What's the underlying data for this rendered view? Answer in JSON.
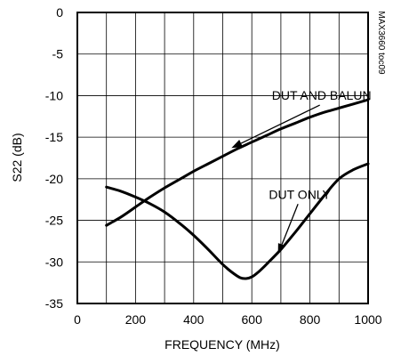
{
  "chart_data": {
    "type": "line",
    "title": "",
    "xlabel": "FREQUENCY (MHz)",
    "ylabel": "S22 (dB)",
    "xlim": [
      0,
      1000
    ],
    "ylim": [
      -35,
      0
    ],
    "xticks": [
      0,
      200,
      400,
      600,
      800,
      1000
    ],
    "yticks": [
      0,
      -5,
      -10,
      -15,
      -20,
      -25,
      -30,
      -35
    ],
    "grid": true,
    "side_label": "MAX3660 toc09",
    "series": [
      {
        "name": "DUT AND BALUN",
        "x": [
          100,
          150,
          200,
          250,
          300,
          350,
          400,
          450,
          500,
          550,
          600,
          650,
          700,
          750,
          800,
          850,
          900,
          950,
          1000
        ],
        "y": [
          -25.6,
          -24.6,
          -23.4,
          -22.2,
          -21.1,
          -20.1,
          -19.1,
          -18.2,
          -17.3,
          -16.4,
          -15.6,
          -14.8,
          -14.0,
          -13.3,
          -12.6,
          -12.0,
          -11.5,
          -11.0,
          -10.5
        ]
      },
      {
        "name": "DUT ONLY",
        "x": [
          100,
          150,
          200,
          250,
          300,
          350,
          400,
          450,
          500,
          530,
          560,
          580,
          600,
          620,
          650,
          700,
          750,
          800,
          850,
          900,
          950,
          1000
        ],
        "y": [
          -21.0,
          -21.5,
          -22.2,
          -23.0,
          -24.0,
          -25.3,
          -26.8,
          -28.5,
          -30.3,
          -31.2,
          -31.9,
          -32.0,
          -31.8,
          -31.3,
          -30.3,
          -28.5,
          -26.4,
          -24.2,
          -22.0,
          -20.0,
          -18.9,
          -18.2
        ]
      }
    ],
    "annotations": [
      {
        "text": "DUT AND BALUN",
        "series": "DUT AND BALUN",
        "at_x": 840,
        "at_y": -10.5,
        "arrow_to_x": 530,
        "arrow_to_y": -16.3
      },
      {
        "text": "DUT ONLY",
        "series": "DUT ONLY",
        "at_x": 765,
        "at_y": -22.4,
        "arrow_to_x": 690,
        "arrow_to_y": -29.1
      }
    ]
  }
}
